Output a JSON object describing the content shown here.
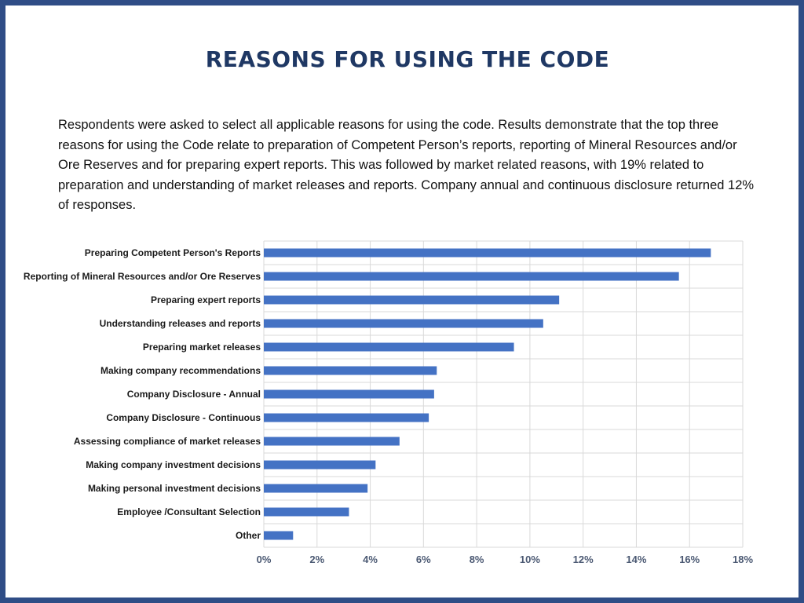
{
  "page": {
    "title": "REASONS FOR USING THE CODE",
    "description": "Respondents were asked to select all applicable reasons for using the code. Results demonstrate that the top three reasons for using the Code relate to preparation of Competent Person’s reports, reporting of Mineral Resources and/or Ore Reserves and for preparing expert reports. This was followed by market related reasons, with 19% related to preparation and understanding of market releases and reports. Company annual and continuous disclosure returned 12% of responses."
  },
  "colors": {
    "frame": "#2f4d86",
    "title": "#1f3864",
    "bar": "#4472c4",
    "grid": "#d9d9d9"
  },
  "chart_data": {
    "type": "bar",
    "orientation": "horizontal",
    "categories": [
      "Preparing Competent Person's Reports",
      "Reporting of Mineral Resources and/or Ore Reserves",
      "Preparing expert reports",
      "Understanding releases and reports",
      "Preparing market releases",
      "Making company recommendations",
      "Company Disclosure - Annual",
      "Company Disclosure - Continuous",
      "Assessing compliance of market releases",
      "Making company investment decisions",
      "Making personal investment decisions",
      "Employee /Consultant Selection",
      "Other"
    ],
    "values": [
      16.8,
      15.6,
      11.1,
      10.5,
      9.4,
      6.5,
      6.4,
      6.2,
      5.1,
      4.2,
      3.9,
      3.2,
      1.1
    ],
    "xlim": [
      0,
      18
    ],
    "x_ticks": [
      0,
      2,
      4,
      6,
      8,
      10,
      12,
      14,
      16,
      18
    ],
    "x_tick_labels": [
      "0%",
      "2%",
      "4%",
      "6%",
      "8%",
      "10%",
      "12%",
      "14%",
      "16%",
      "18%"
    ],
    "grid": true,
    "legend": "none",
    "title": "",
    "xlabel": "",
    "ylabel": ""
  }
}
